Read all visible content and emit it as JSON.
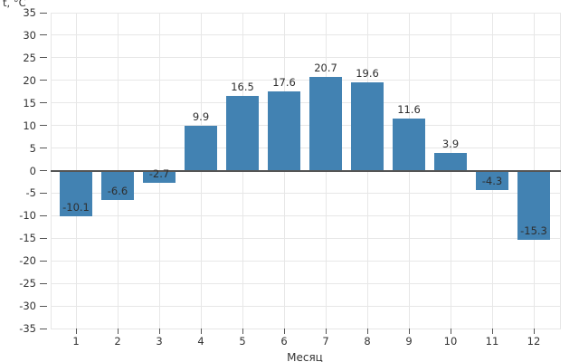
{
  "chart": {
    "y_axis_title": "t, °C",
    "x_axis_title": "Месяц"
  },
  "chart_data": {
    "type": "bar",
    "title": "",
    "xlabel": "Месяц",
    "ylabel": "t, °C",
    "categories": [
      "1",
      "2",
      "3",
      "4",
      "5",
      "6",
      "7",
      "8",
      "9",
      "10",
      "11",
      "12"
    ],
    "values": [
      -10.1,
      -6.6,
      -2.7,
      9.9,
      16.5,
      17.6,
      20.7,
      19.6,
      11.6,
      3.9,
      -4.3,
      -15.3
    ],
    "value_labels": [
      "-10.1",
      "-6.6",
      "-2.7",
      "9.9",
      "16.5",
      "17.6",
      "20.7",
      "19.6",
      "11.6",
      "3.9",
      "-4.3",
      "-15.3"
    ],
    "ylim": [
      -35,
      35
    ],
    "ytick_step": 5,
    "grid": true,
    "legend": "none",
    "bar_color": "#4282b2",
    "zero_line_color": "#555555",
    "grid_color": "#e7e7e7",
    "tick_color": "#555555",
    "text_color": "#333333"
  }
}
